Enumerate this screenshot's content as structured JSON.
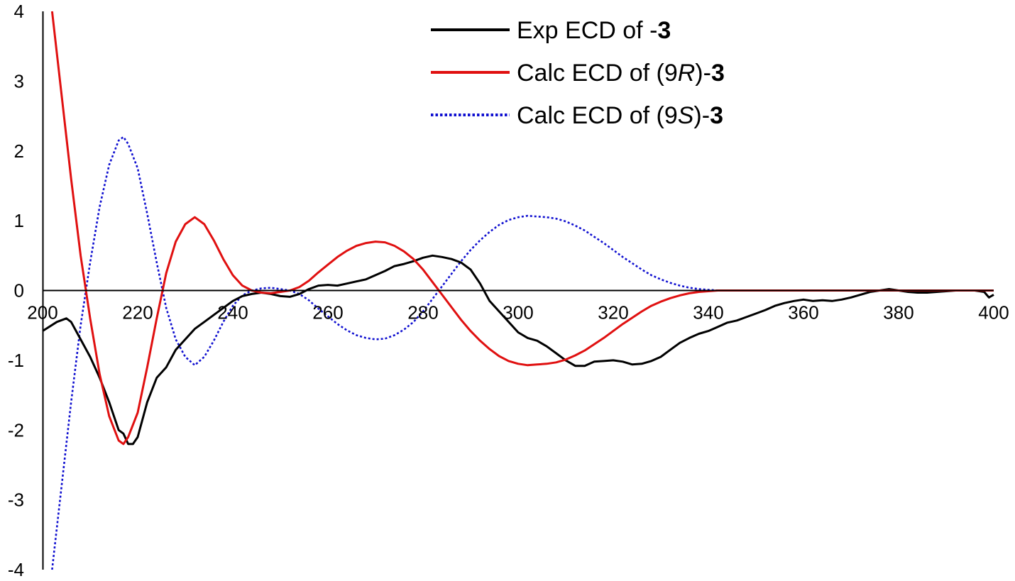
{
  "chart_data": {
    "type": "line",
    "title": "",
    "xlabel": "",
    "ylabel": "",
    "xlim": [
      200,
      400
    ],
    "ylim": [
      -4,
      4
    ],
    "x_ticks": [
      200,
      220,
      240,
      260,
      280,
      300,
      320,
      340,
      360,
      380,
      400
    ],
    "y_ticks": [
      -4,
      -3,
      -2,
      -1,
      0,
      1,
      2,
      3,
      4
    ],
    "x_tick_labels": [
      "200",
      "220",
      "240",
      "260",
      "280",
      "300",
      "320",
      "340",
      "360",
      "380",
      "400"
    ],
    "y_tick_labels": [
      "-4",
      "-3",
      "-2",
      "-1",
      "0",
      "1",
      "2",
      "3",
      "4"
    ],
    "grid": false,
    "legend_position": "top-center",
    "series": [
      {
        "name": "Exp ECD of -3",
        "legend": {
          "prefix": "Exp ECD of -",
          "italic": "",
          "suffix": "",
          "bold": "3"
        },
        "color": "#000000",
        "dash": "solid",
        "x": [
          200,
          203,
          205,
          206,
          208,
          210,
          212,
          214,
          216,
          217,
          218,
          219,
          220,
          222,
          224,
          226,
          228,
          230,
          232,
          234,
          236,
          238,
          240,
          242,
          244,
          246,
          248,
          250,
          252,
          254,
          256,
          258,
          260,
          262,
          264,
          266,
          268,
          270,
          272,
          274,
          276,
          278,
          280,
          282,
          284,
          286,
          288,
          290,
          292,
          294,
          296,
          298,
          300,
          302,
          304,
          306,
          308,
          310,
          312,
          314,
          316,
          318,
          320,
          322,
          324,
          326,
          328,
          330,
          332,
          334,
          336,
          338,
          340,
          342,
          344,
          346,
          348,
          350,
          352,
          354,
          356,
          358,
          360,
          362,
          364,
          366,
          368,
          370,
          372,
          374,
          376,
          378,
          380,
          382,
          384,
          386,
          388,
          390,
          392,
          394,
          396,
          398,
          399,
          400
        ],
        "y": [
          -0.58,
          -0.45,
          -0.4,
          -0.45,
          -0.7,
          -0.95,
          -1.25,
          -1.6,
          -2.0,
          -2.05,
          -2.2,
          -2.2,
          -2.1,
          -1.6,
          -1.25,
          -1.1,
          -0.85,
          -0.7,
          -0.55,
          -0.45,
          -0.35,
          -0.25,
          -0.15,
          -0.08,
          -0.05,
          -0.03,
          -0.05,
          -0.08,
          -0.09,
          -0.05,
          0.02,
          0.07,
          0.08,
          0.07,
          0.1,
          0.13,
          0.16,
          0.22,
          0.28,
          0.35,
          0.38,
          0.42,
          0.47,
          0.5,
          0.48,
          0.45,
          0.4,
          0.3,
          0.1,
          -0.15,
          -0.3,
          -0.45,
          -0.6,
          -0.68,
          -0.72,
          -0.8,
          -0.9,
          -1.0,
          -1.08,
          -1.08,
          -1.02,
          -1.01,
          -1.0,
          -1.02,
          -1.06,
          -1.05,
          -1.01,
          -0.95,
          -0.85,
          -0.75,
          -0.68,
          -0.62,
          -0.58,
          -0.52,
          -0.46,
          -0.43,
          -0.38,
          -0.33,
          -0.28,
          -0.22,
          -0.18,
          -0.15,
          -0.13,
          -0.15,
          -0.14,
          -0.15,
          -0.13,
          -0.1,
          -0.06,
          -0.02,
          0.0,
          0.02,
          0.0,
          -0.02,
          -0.03,
          -0.03,
          -0.02,
          -0.01,
          0.0,
          0.0,
          0.0,
          -0.02,
          -0.1,
          -0.06
        ]
      },
      {
        "name": "Calc ECD of (9R)-3",
        "legend": {
          "prefix": "Calc ECD of (9",
          "italic": "R",
          "suffix": ")-",
          "bold": "3"
        },
        "color": "#e01010",
        "dash": "solid",
        "x": [
          202,
          204,
          206,
          208,
          210,
          212,
          214,
          216,
          217,
          218,
          220,
          222,
          224,
          226,
          228,
          230,
          232,
          234,
          236,
          238,
          240,
          242,
          244,
          246,
          248,
          250,
          252,
          254,
          256,
          258,
          260,
          262,
          264,
          266,
          268,
          270,
          272,
          274,
          276,
          278,
          280,
          282,
          284,
          286,
          288,
          290,
          292,
          294,
          296,
          298,
          300,
          302,
          304,
          306,
          307,
          308,
          310,
          312,
          314,
          316,
          318,
          320,
          322,
          324,
          326,
          328,
          330,
          332,
          334,
          336,
          338,
          340,
          342,
          344,
          346,
          348,
          350,
          355,
          360,
          365,
          370,
          375,
          378,
          380,
          382,
          385,
          390,
          395,
          400
        ],
        "y": [
          4.0,
          2.8,
          1.6,
          0.5,
          -0.4,
          -1.2,
          -1.8,
          -2.15,
          -2.2,
          -2.1,
          -1.75,
          -1.1,
          -0.4,
          0.25,
          0.7,
          0.95,
          1.05,
          0.95,
          0.72,
          0.45,
          0.22,
          0.07,
          0.0,
          -0.03,
          -0.04,
          -0.02,
          0.0,
          0.05,
          0.14,
          0.26,
          0.37,
          0.48,
          0.57,
          0.64,
          0.68,
          0.7,
          0.69,
          0.64,
          0.56,
          0.45,
          0.3,
          0.12,
          -0.06,
          -0.24,
          -0.42,
          -0.58,
          -0.72,
          -0.84,
          -0.94,
          -1.01,
          -1.05,
          -1.07,
          -1.06,
          -1.05,
          -1.04,
          -1.03,
          -0.99,
          -0.93,
          -0.86,
          -0.77,
          -0.68,
          -0.58,
          -0.48,
          -0.39,
          -0.3,
          -0.22,
          -0.16,
          -0.11,
          -0.07,
          -0.04,
          -0.02,
          -0.01,
          0.0,
          0.0,
          0.0,
          0.0,
          0.0,
          0.0,
          0.0,
          0.0,
          0.0,
          0.0,
          0.0,
          0.0,
          0.0,
          0.0,
          0.0,
          0.0,
          0.0
        ]
      },
      {
        "name": "Calc ECD of (9S)-3",
        "legend": {
          "prefix": "Calc ECD of (9",
          "italic": "S",
          "suffix": ")-",
          "bold": "3"
        },
        "color": "#1010d0",
        "dash": "dotted",
        "x": [
          202,
          204,
          206,
          208,
          210,
          212,
          214,
          216,
          217,
          218,
          220,
          222,
          224,
          226,
          228,
          230,
          232,
          234,
          236,
          238,
          240,
          242,
          244,
          246,
          248,
          250,
          252,
          254,
          256,
          258,
          260,
          262,
          264,
          266,
          268,
          270,
          272,
          274,
          276,
          278,
          280,
          282,
          284,
          286,
          288,
          290,
          292,
          294,
          296,
          298,
          300,
          302,
          304,
          306,
          307,
          308,
          310,
          312,
          314,
          316,
          318,
          320,
          322,
          324,
          326,
          328,
          330,
          332,
          334,
          336,
          338,
          340,
          342,
          344,
          346,
          348,
          350,
          355,
          360,
          365,
          370,
          375,
          380,
          385,
          390,
          395,
          400
        ],
        "y": [
          -4.0,
          -2.8,
          -1.6,
          -0.5,
          0.4,
          1.2,
          1.8,
          2.15,
          2.2,
          2.1,
          1.75,
          1.1,
          0.4,
          -0.25,
          -0.7,
          -0.95,
          -1.07,
          -0.95,
          -0.72,
          -0.45,
          -0.22,
          -0.07,
          0.0,
          0.03,
          0.04,
          0.02,
          0.0,
          -0.05,
          -0.14,
          -0.26,
          -0.37,
          -0.48,
          -0.57,
          -0.64,
          -0.68,
          -0.7,
          -0.69,
          -0.64,
          -0.56,
          -0.45,
          -0.3,
          -0.12,
          0.06,
          0.24,
          0.42,
          0.58,
          0.72,
          0.84,
          0.94,
          1.01,
          1.05,
          1.07,
          1.06,
          1.05,
          1.04,
          1.03,
          0.99,
          0.93,
          0.86,
          0.77,
          0.68,
          0.58,
          0.48,
          0.39,
          0.3,
          0.22,
          0.16,
          0.11,
          0.07,
          0.04,
          0.02,
          0.01,
          0.0,
          0.0,
          0.0,
          0.0,
          0.0,
          0.0,
          0.0,
          0.0,
          0.0,
          0.0,
          0.0,
          0.0,
          0.0,
          0.0,
          0.0
        ]
      }
    ]
  }
}
